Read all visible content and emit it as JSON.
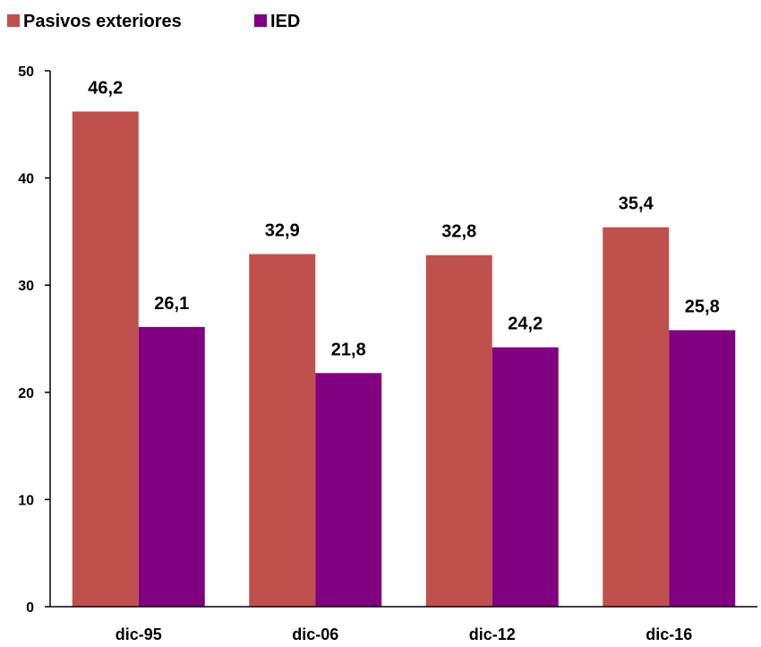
{
  "chart_data": {
    "type": "bar",
    "categories": [
      "dic-95",
      "dic-06",
      "dic-12",
      "dic-16"
    ],
    "series": [
      {
        "name": "Pasivos exteriores",
        "color": "#c0504d",
        "values": [
          46.2,
          32.9,
          32.8,
          35.4
        ],
        "labels": [
          "46,2",
          "32,9",
          "32,8",
          "35,4"
        ]
      },
      {
        "name": "IED",
        "color": "#800080",
        "values": [
          26.1,
          21.8,
          24.2,
          25.8
        ],
        "labels": [
          "26,1",
          "21,8",
          "24,2",
          "25,8"
        ]
      }
    ],
    "yticks": [
      "0",
      "10",
      "20",
      "30",
      "40",
      "50"
    ],
    "ylim": [
      0,
      50
    ],
    "grid": false,
    "legend_position": "top-left"
  }
}
